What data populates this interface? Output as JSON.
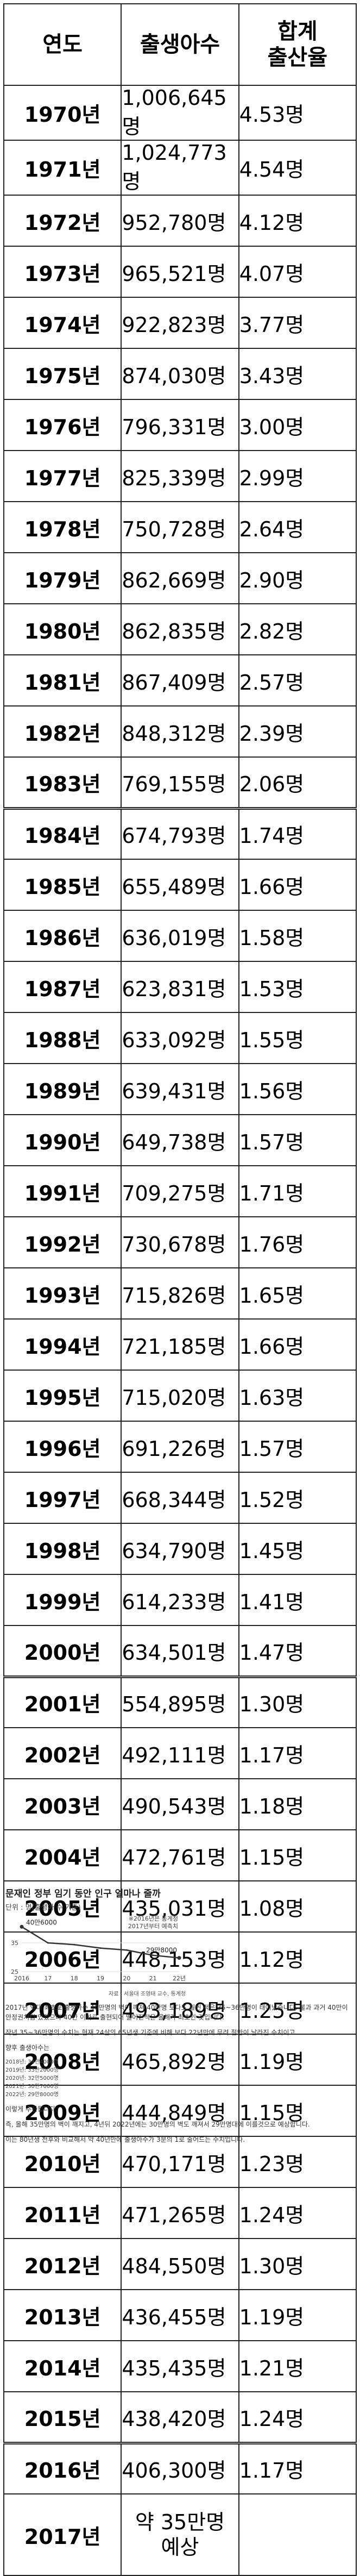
{
  "table": {
    "headers": {
      "year": "연도",
      "births": "출생아수",
      "tfr_line1": "합계",
      "tfr_line2": "출산율"
    },
    "rows": [
      {
        "year": "1970년",
        "births": "1,006,645명",
        "tfr": "4.53명"
      },
      {
        "year": "1971년",
        "births": "1,024,773명",
        "tfr": "4.54명"
      },
      {
        "year": "1972년",
        "births": "952,780명",
        "tfr": "4.12명"
      },
      {
        "year": "1973년",
        "births": "965,521명",
        "tfr": "4.07명"
      },
      {
        "year": "1974년",
        "births": "922,823명",
        "tfr": "3.77명"
      },
      {
        "year": "1975년",
        "births": "874,030명",
        "tfr": "3.43명"
      },
      {
        "year": "1976년",
        "births": "796,331명",
        "tfr": "3.00명"
      },
      {
        "year": "1977년",
        "births": "825,339명",
        "tfr": "2.99명"
      },
      {
        "year": "1978년",
        "births": "750,728명",
        "tfr": "2.64명"
      },
      {
        "year": "1979년",
        "births": "862,669명",
        "tfr": "2.90명"
      },
      {
        "year": "1980년",
        "births": "862,835명",
        "tfr": "2.82명"
      },
      {
        "year": "1981년",
        "births": "867,409명",
        "tfr": "2.57명"
      },
      {
        "year": "1982년",
        "births": "848,312명",
        "tfr": "2.39명"
      },
      {
        "year": "1983년",
        "births": "769,155명",
        "tfr": "2.06명"
      },
      {
        "year": "1984년",
        "births": "674,793명",
        "tfr": "1.74명"
      },
      {
        "year": "1985년",
        "births": "655,489명",
        "tfr": "1.66명"
      },
      {
        "year": "1986년",
        "births": "636,019명",
        "tfr": "1.58명"
      },
      {
        "year": "1987년",
        "births": "623,831명",
        "tfr": "1.53명"
      },
      {
        "year": "1988년",
        "births": "633,092명",
        "tfr": "1.55명"
      },
      {
        "year": "1989년",
        "births": "639,431명",
        "tfr": "1.56명"
      },
      {
        "year": "1990년",
        "births": "649,738명",
        "tfr": "1.57명"
      },
      {
        "year": "1991년",
        "births": "709,275명",
        "tfr": "1.71명"
      },
      {
        "year": "1992년",
        "births": "730,678명",
        "tfr": "1.76명"
      },
      {
        "year": "1993년",
        "births": "715,826명",
        "tfr": "1.65명"
      },
      {
        "year": "1994년",
        "births": "721,185명",
        "tfr": "1.66명"
      },
      {
        "year": "1995년",
        "births": "715,020명",
        "tfr": "1.63명"
      },
      {
        "year": "1996년",
        "births": "691,226명",
        "tfr": "1.57명"
      },
      {
        "year": "1997년",
        "births": "668,344명",
        "tfr": "1.52명"
      },
      {
        "year": "1998년",
        "births": "634,790명",
        "tfr": "1.45명"
      },
      {
        "year": "1999년",
        "births": "614,233명",
        "tfr": "1.41명"
      },
      {
        "year": "2000년",
        "births": "634,501명",
        "tfr": "1.47명"
      },
      {
        "year": "2001년",
        "births": "554,895명",
        "tfr": "1.30명"
      },
      {
        "year": "2002년",
        "births": "492,111명",
        "tfr": "1.17명"
      },
      {
        "year": "2003년",
        "births": "490,543명",
        "tfr": "1.18명"
      },
      {
        "year": "2004년",
        "births": "472,761명",
        "tfr": "1.15명"
      },
      {
        "year": "2005년",
        "births": "435,031명",
        "tfr": "1.08명"
      },
      {
        "year": "2006년",
        "births": "448,153명",
        "tfr": "1.12명"
      },
      {
        "year": "2007년",
        "births": "493,189명",
        "tfr": "1.25명"
      },
      {
        "year": "2008년",
        "births": "465,892명",
        "tfr": "1.19명"
      },
      {
        "year": "2009년",
        "births": "444,849명",
        "tfr": "1.15명"
      },
      {
        "year": "2010년",
        "births": "470,171명",
        "tfr": "1.23명"
      },
      {
        "year": "2011년",
        "births": "471,265명",
        "tfr": "1.24명"
      },
      {
        "year": "2012년",
        "births": "484,550명",
        "tfr": "1.30명"
      },
      {
        "year": "2013년",
        "births": "436,455명",
        "tfr": "1.19명"
      },
      {
        "year": "2014년",
        "births": "435,435명",
        "tfr": "1.21명"
      },
      {
        "year": "2015년",
        "births": "438,420명",
        "tfr": "1.24명"
      },
      {
        "year": "2016년",
        "births": "406,300명",
        "tfr": "1.17명"
      }
    ],
    "last_row": {
      "year": "2017년",
      "births_line1": "약 35만명",
      "births_line2": "예상",
      "tfr": ""
    }
  },
  "article": {
    "chart_title": "문재인 정부 임기 동안 인구 얼마나 줄까",
    "chart_unit": "단위 : 명(출생아 수 기준)",
    "note_line1": "※2016년은 통계청",
    "note_line2": "2017년부터 예측치",
    "label_start": "40만6000",
    "label_end": "29만8000",
    "source": "자료 : 서울대 조영태 교수, 통계청",
    "para1": "2017년 역대 최초로 출생아수 40만명의 벽이 깨져 40만명 보다도 훨씬 적은 35~36만명이 태어났습니다. 불과 과거 40만이 안정권처럼 있었으나 40만 이하로 출현되어 떨어진적은 올해가 최초인 것입니다.",
    "para2": "작년 35~36만명의 수치는 현재 24살의 65년생 기준에 비해 보다 22년만에 무려 절반이 날라진 수치이고",
    "list_title": "향후 출생아수는",
    "list_items": [
      "2018년: 34만4000명",
      "2019년: 33만2000명",
      "2020년: 32만5000명",
      "2021년: 30만7000명",
      "2022년: 29만8000명"
    ],
    "footer1": "이렇게 추산됩니다.",
    "footer2": "즉, 올해 35만명의 벽이 깨지고, 4년뒤 2022년에는 30만명의 벽도 깨져서 29만명대에 이를것으로 예상합니다.",
    "footer3": "이는 80년생 전후와 비교해서 약 40년만에 출생아수가 3분의 1로 줄어드는 수치입니다."
  },
  "chart_data": {
    "type": "line",
    "x": [
      2016,
      2017,
      2018,
      2019,
      2020,
      2021,
      2022
    ],
    "xticks": [
      "2016",
      "17",
      "18",
      "19",
      "20",
      "21",
      "22년"
    ],
    "yticks": [
      25,
      35
    ],
    "ylim": [
      25,
      42
    ],
    "series": [
      {
        "values": [
          40.6,
          35.0,
          34.4,
          33.2,
          32.5,
          30.7,
          29.8
        ]
      }
    ],
    "annotations": [
      "40만6000",
      "29만8000",
      "※2016년은 통계청",
      "2017년부터 예측치"
    ],
    "line_color": "#333333"
  }
}
